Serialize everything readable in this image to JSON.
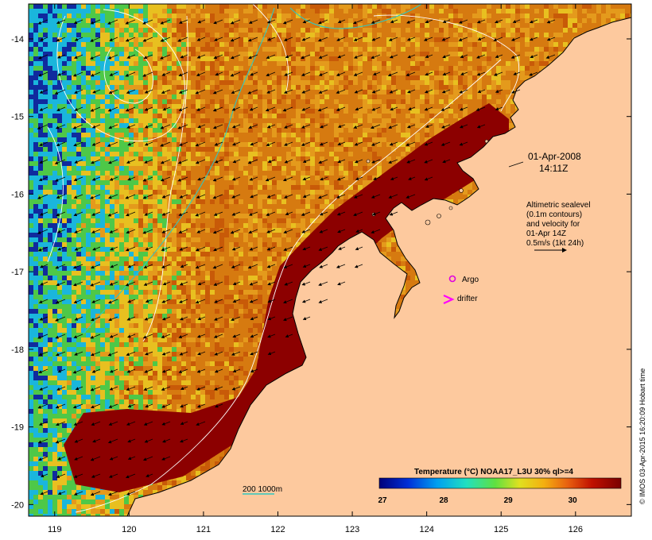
{
  "map": {
    "lon_ticks": [
      "119",
      "120",
      "121",
      "122",
      "123",
      "124",
      "125",
      "126"
    ],
    "lat_ticks": [
      "-14",
      "-15",
      "-16",
      "-17",
      "-18",
      "-19",
      "-20"
    ],
    "lon_range": [
      118.65,
      126.75
    ],
    "lat_range": [
      -20.15,
      -13.55
    ]
  },
  "annotations": {
    "date": "01-Apr-2008",
    "time": "14:11Z",
    "altimetry_lines": [
      "Altimetric sealevel",
      "(0.1m contours)",
      "and velocity for",
      "01-Apr 14Z",
      "0.5m/s (1kt 24h)"
    ],
    "argo_label": "Argo",
    "drifter_label": "drifter",
    "depth_label": "200  1000m"
  },
  "colorbar": {
    "title": "Temperature (°C) NOAA17_L3U 30% ql>=4",
    "ticks": [
      "27",
      "28",
      "29",
      "30"
    ],
    "range": [
      27,
      30.75
    ]
  },
  "credit": "© IMOS 03-Apr-2015 16:20:09 Hobart time",
  "colors": {
    "land": "#fdc99e",
    "hot": "#8c0000",
    "warm_orange": "#d67a10",
    "yellow": "#e8c020",
    "green": "#4ec848",
    "cyan": "#1ab6dc",
    "blue": "#102a9e",
    "argo": "#e000e0",
    "drifter": "#ff00ff",
    "depth_200": "#2fc8c0",
    "depth_1000": "#ffffff"
  }
}
